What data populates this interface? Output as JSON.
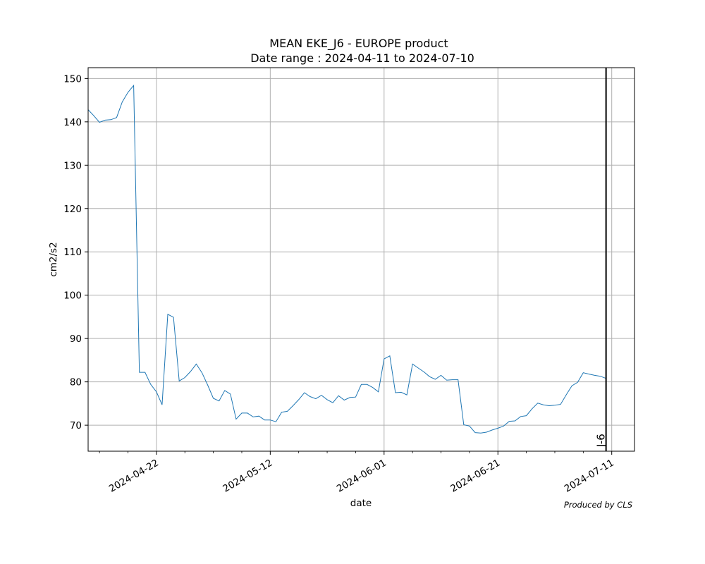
{
  "chart_data": {
    "type": "line",
    "title": "MEAN EKE_J6 - EUROPE product",
    "subtitle": "Date range : 2024-04-11 to 2024-07-10",
    "xlabel": "date",
    "ylabel": "cm2/s2",
    "credit": "Produced by CLS",
    "x_range": [
      "2024-04-10",
      "2024-07-15"
    ],
    "ylim": [
      64,
      152.5
    ],
    "x_ticks": [
      "2024-04-22",
      "2024-05-12",
      "2024-06-01",
      "2024-06-21",
      "2024-07-11"
    ],
    "y_ticks": [
      70,
      80,
      90,
      100,
      110,
      120,
      130,
      140,
      150
    ],
    "grid": true,
    "line_color": "#1f77b4",
    "marker": {
      "date": "2024-07-10",
      "label": "J-6",
      "color": "#000000"
    },
    "series": [
      {
        "x": [
          "2024-04-10",
          "2024-04-11",
          "2024-04-12",
          "2024-04-13",
          "2024-04-14",
          "2024-04-15",
          "2024-04-16",
          "2024-04-17",
          "2024-04-18",
          "2024-04-19",
          "2024-04-20",
          "2024-04-21",
          "2024-04-22",
          "2024-04-23",
          "2024-04-24",
          "2024-04-25",
          "2024-04-26",
          "2024-04-27",
          "2024-04-28",
          "2024-04-29",
          "2024-04-30",
          "2024-05-01",
          "2024-05-02",
          "2024-05-03",
          "2024-05-04",
          "2024-05-05",
          "2024-05-06",
          "2024-05-07",
          "2024-05-08",
          "2024-05-09",
          "2024-05-10",
          "2024-05-11",
          "2024-05-12",
          "2024-05-13",
          "2024-05-14",
          "2024-05-15",
          "2024-05-16",
          "2024-05-17",
          "2024-05-18",
          "2024-05-19",
          "2024-05-20",
          "2024-05-21",
          "2024-05-22",
          "2024-05-23",
          "2024-05-24",
          "2024-05-25",
          "2024-05-26",
          "2024-05-27",
          "2024-05-28",
          "2024-05-29",
          "2024-05-30",
          "2024-05-31",
          "2024-06-01",
          "2024-06-02",
          "2024-06-03",
          "2024-06-04",
          "2024-06-05",
          "2024-06-06",
          "2024-06-07",
          "2024-06-08",
          "2024-06-09",
          "2024-06-10",
          "2024-06-11",
          "2024-06-12",
          "2024-06-13",
          "2024-06-14",
          "2024-06-15",
          "2024-06-16",
          "2024-06-17",
          "2024-06-18",
          "2024-06-19",
          "2024-06-20",
          "2024-06-21",
          "2024-06-22",
          "2024-06-23",
          "2024-06-24",
          "2024-06-25",
          "2024-06-26",
          "2024-06-27",
          "2024-06-28",
          "2024-06-29",
          "2024-06-30",
          "2024-07-01",
          "2024-07-02",
          "2024-07-03",
          "2024-07-04",
          "2024-07-05",
          "2024-07-06",
          "2024-07-07",
          "2024-07-08",
          "2024-07-09",
          "2024-07-10"
        ],
        "y": [
          142.8,
          141.4,
          139.9,
          140.4,
          140.5,
          141.0,
          144.6,
          146.8,
          148.4,
          82.2,
          82.2,
          79.4,
          77.7,
          74.7,
          95.6,
          94.9,
          80.2,
          81.0,
          82.4,
          84.1,
          82.1,
          79.3,
          76.2,
          75.6,
          78.0,
          77.2,
          71.4,
          72.8,
          72.8,
          71.9,
          72.1,
          71.2,
          71.2,
          70.8,
          73.0,
          73.2,
          74.5,
          75.9,
          77.5,
          76.6,
          76.1,
          76.9,
          75.9,
          75.2,
          76.8,
          75.8,
          76.4,
          76.5,
          79.4,
          79.4,
          78.7,
          77.7,
          85.3,
          86.0,
          77.5,
          77.6,
          77.0,
          84.1,
          83.2,
          82.3,
          81.2,
          80.6,
          81.5,
          80.4,
          80.5,
          80.5,
          70.1,
          69.8,
          68.3,
          68.2,
          68.4,
          68.9,
          69.3,
          69.8,
          70.9,
          71.0,
          72.0,
          72.2,
          73.8,
          75.1,
          74.7,
          74.5,
          74.6,
          74.8,
          77.0,
          79.1,
          79.9,
          82.1,
          81.8,
          81.5,
          81.3,
          80.8
        ]
      }
    ]
  }
}
